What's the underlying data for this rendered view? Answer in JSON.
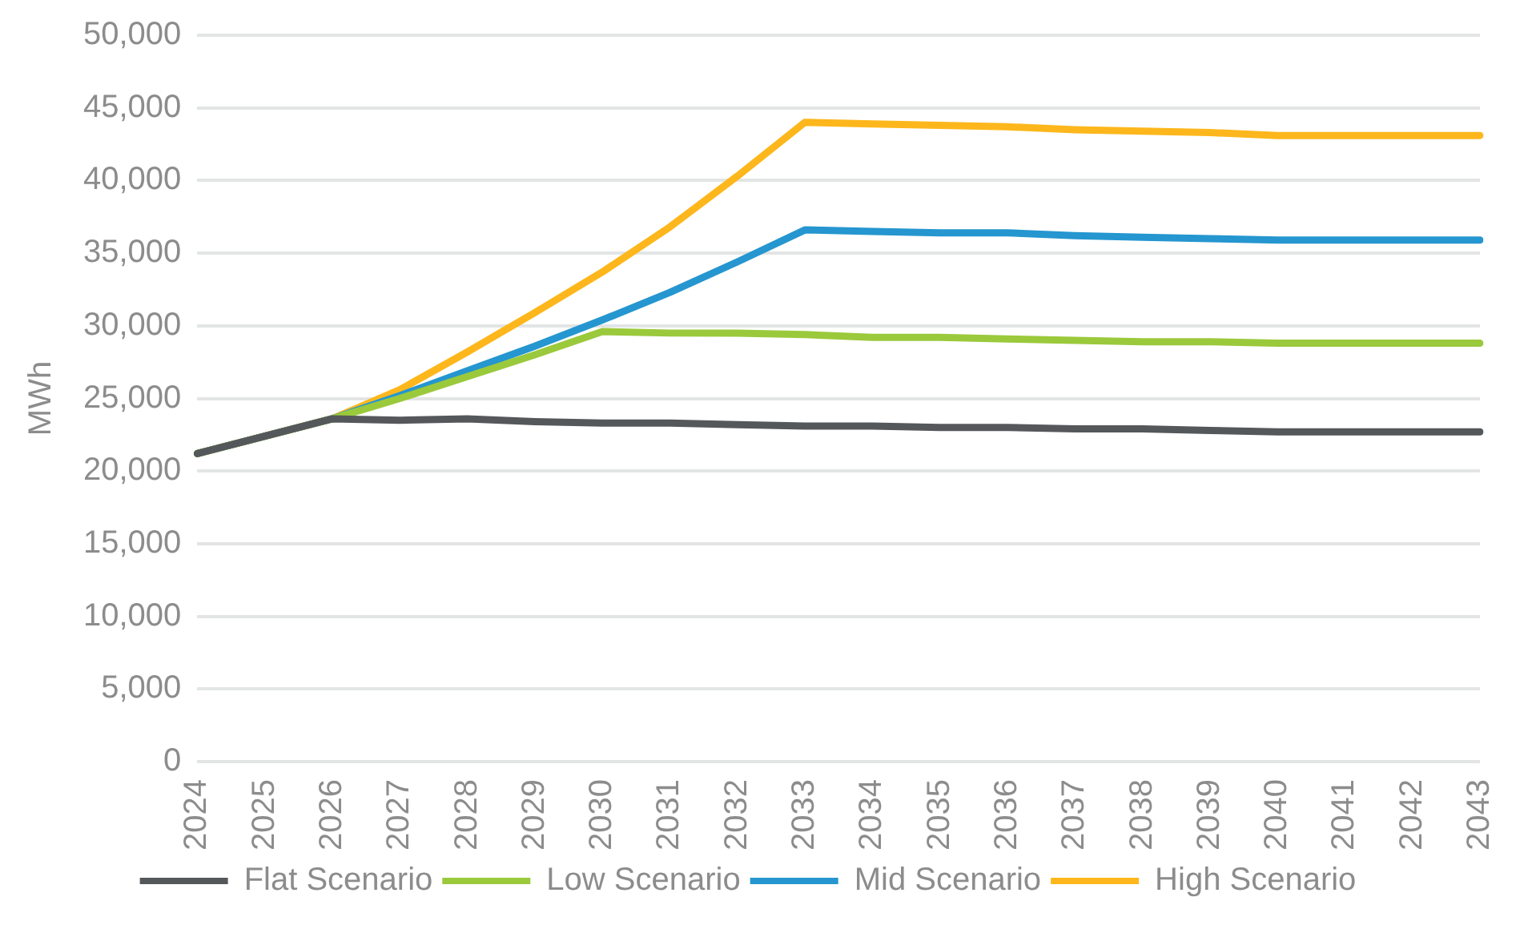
{
  "chart_data": {
    "type": "line",
    "ylabel": "MWh",
    "categories": [
      "2024",
      "2025",
      "2026",
      "2027",
      "2028",
      "2029",
      "2030",
      "2031",
      "2032",
      "2033",
      "2034",
      "2035",
      "2036",
      "2037",
      "2038",
      "2039",
      "2040",
      "2041",
      "2042",
      "2043"
    ],
    "series": [
      {
        "name": "Flat Scenario",
        "color": "#55585b",
        "values": [
          21200,
          22400,
          23600,
          23500,
          23600,
          23400,
          23300,
          23300,
          23200,
          23100,
          23100,
          23000,
          23000,
          22900,
          22900,
          22800,
          22700,
          22700,
          22700,
          22700
        ]
      },
      {
        "name": "Low Scenario",
        "color": "#9bc93c",
        "values": [
          21200,
          22400,
          23600,
          25000,
          26500,
          28000,
          29600,
          29500,
          29500,
          29400,
          29200,
          29200,
          29100,
          29000,
          28900,
          28900,
          28800,
          28800,
          28800,
          28800
        ]
      },
      {
        "name": "Mid Scenario",
        "color": "#2596cf",
        "values": [
          21200,
          22400,
          23600,
          25200,
          26900,
          28600,
          30400,
          32300,
          34400,
          36600,
          36500,
          36400,
          36400,
          36200,
          36100,
          36000,
          35900,
          35900,
          35900,
          35900
        ]
      },
      {
        "name": "High Scenario",
        "color": "#fdb71c",
        "values": [
          21200,
          22400,
          23600,
          25600,
          28200,
          30900,
          33700,
          36800,
          40300,
          44000,
          43900,
          43800,
          43700,
          43500,
          43400,
          43300,
          43100,
          43100,
          43100,
          43100
        ]
      }
    ],
    "ylim": [
      0,
      50000
    ],
    "yticks": [
      {
        "value": 0,
        "label": "0"
      },
      {
        "value": 5000,
        "label": "5,000"
      },
      {
        "value": 10000,
        "label": "10,000"
      },
      {
        "value": 15000,
        "label": "15,000"
      },
      {
        "value": 20000,
        "label": "20,000"
      },
      {
        "value": 25000,
        "label": "25,000"
      },
      {
        "value": 30000,
        "label": "30,000"
      },
      {
        "value": 35000,
        "label": "35,000"
      },
      {
        "value": 40000,
        "label": "40,000"
      },
      {
        "value": 45000,
        "label": "45,000"
      },
      {
        "value": 50000,
        "label": "50,000"
      }
    ],
    "grid": "y",
    "legend": "bottom",
    "marker": "none",
    "line_style": "solid"
  }
}
